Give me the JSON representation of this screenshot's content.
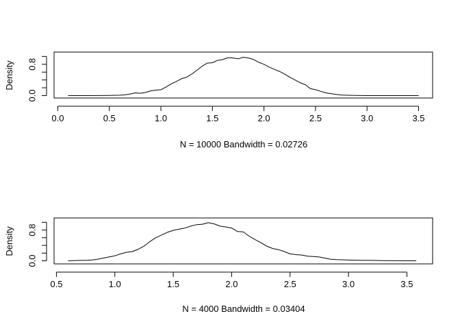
{
  "chart_data": [
    {
      "type": "line",
      "title": "",
      "xlabel": "N = 10000   Bandwidth = 0.02726",
      "ylabel": "Density",
      "xlim": [
        0.1,
        3.5
      ],
      "ylim": [
        0.0,
        1.05
      ],
      "xticks": [
        0.0,
        0.5,
        1.0,
        1.5,
        2.0,
        2.5,
        3.0,
        3.5
      ],
      "xtick_labels": [
        "0.0",
        "0.5",
        "1.0",
        "1.5",
        "2.0",
        "2.5",
        "3.0",
        "3.5"
      ],
      "yticks": [
        0.0,
        0.2,
        0.4,
        0.6,
        0.8,
        1.0
      ],
      "ytick_labels": [
        "0.0",
        "",
        "",
        "",
        "0.8",
        ""
      ],
      "grid": false,
      "series": [
        {
          "x": [
            0.1,
            0.3,
            0.5,
            0.6,
            0.65,
            0.7,
            0.75,
            0.8,
            0.85,
            0.9,
            0.95,
            1.0,
            1.05,
            1.1,
            1.15,
            1.2,
            1.25,
            1.3,
            1.35,
            1.4,
            1.45,
            1.5,
            1.55,
            1.6,
            1.65,
            1.7,
            1.75,
            1.8,
            1.85,
            1.9,
            1.95,
            2.0,
            2.05,
            2.1,
            2.15,
            2.2,
            2.25,
            2.3,
            2.35,
            2.4,
            2.45,
            2.5,
            2.55,
            2.6,
            2.65,
            2.7,
            2.75,
            2.8,
            2.9,
            3.0,
            3.2,
            3.5
          ],
          "y": [
            0.0,
            0.0,
            0.005,
            0.01,
            0.02,
            0.04,
            0.07,
            0.06,
            0.08,
            0.12,
            0.14,
            0.15,
            0.22,
            0.3,
            0.36,
            0.43,
            0.47,
            0.55,
            0.65,
            0.75,
            0.83,
            0.84,
            0.9,
            0.92,
            0.97,
            0.96,
            0.94,
            0.98,
            0.96,
            0.92,
            0.85,
            0.8,
            0.73,
            0.67,
            0.62,
            0.55,
            0.47,
            0.4,
            0.33,
            0.28,
            0.18,
            0.15,
            0.11,
            0.07,
            0.05,
            0.03,
            0.015,
            0.01,
            0.005,
            0.0,
            0.0,
            0.0
          ]
        }
      ]
    },
    {
      "type": "line",
      "title": "",
      "xlabel": "N = 4000   Bandwidth = 0.03404",
      "ylabel": "Density",
      "xlim": [
        0.6,
        3.6
      ],
      "ylim": [
        0.0,
        1.05
      ],
      "xticks": [
        0.5,
        1.0,
        1.5,
        2.0,
        2.5,
        3.0,
        3.5
      ],
      "xtick_labels": [
        "0.5",
        "1.0",
        "1.5",
        "2.0",
        "2.5",
        "3.0",
        "3.5"
      ],
      "yticks": [
        0.0,
        0.2,
        0.4,
        0.6,
        0.8,
        1.0
      ],
      "ytick_labels": [
        "0.0",
        "",
        "",
        "",
        "0.8",
        ""
      ],
      "grid": false,
      "series": [
        {
          "x": [
            0.6,
            0.7,
            0.75,
            0.8,
            0.85,
            0.9,
            0.95,
            1.0,
            1.05,
            1.1,
            1.15,
            1.2,
            1.25,
            1.3,
            1.35,
            1.4,
            1.45,
            1.5,
            1.55,
            1.6,
            1.65,
            1.7,
            1.75,
            1.8,
            1.85,
            1.9,
            1.95,
            2.0,
            2.05,
            2.1,
            2.15,
            2.2,
            2.25,
            2.3,
            2.35,
            2.4,
            2.45,
            2.5,
            2.55,
            2.6,
            2.65,
            2.7,
            2.75,
            2.8,
            2.85,
            2.9,
            3.0,
            3.1,
            3.2,
            3.3,
            3.58
          ],
          "y": [
            0.0,
            0.01,
            0.01,
            0.02,
            0.04,
            0.07,
            0.1,
            0.13,
            0.18,
            0.22,
            0.24,
            0.3,
            0.38,
            0.5,
            0.6,
            0.67,
            0.74,
            0.79,
            0.82,
            0.85,
            0.9,
            0.94,
            0.95,
            0.99,
            0.96,
            0.9,
            0.88,
            0.85,
            0.76,
            0.75,
            0.64,
            0.55,
            0.47,
            0.38,
            0.32,
            0.29,
            0.24,
            0.18,
            0.16,
            0.15,
            0.12,
            0.11,
            0.1,
            0.07,
            0.04,
            0.03,
            0.02,
            0.015,
            0.01,
            0.005,
            0.0
          ]
        }
      ]
    }
  ]
}
